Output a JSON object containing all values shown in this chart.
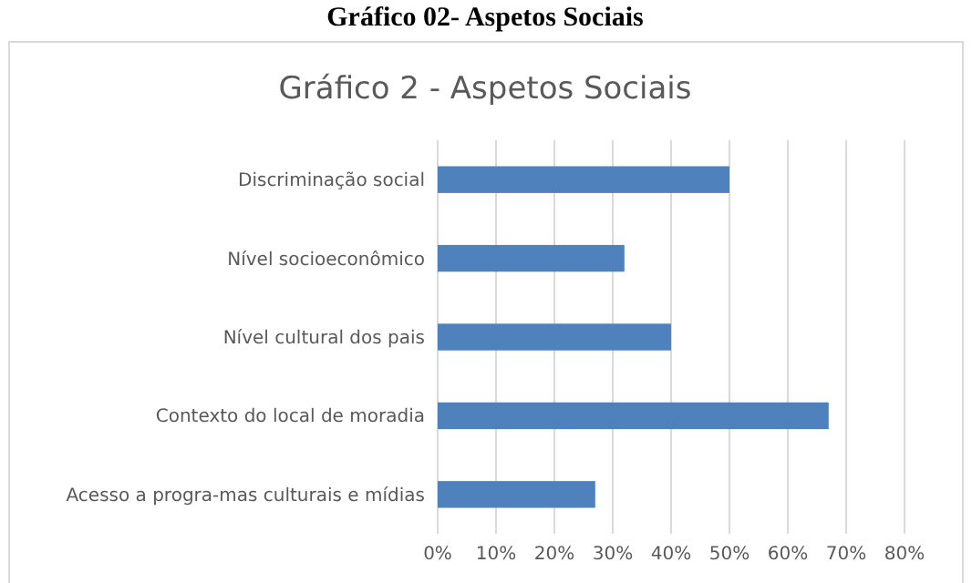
{
  "chart_data": {
    "type": "bar",
    "orientation": "horizontal",
    "title": "Gráfico 02- Aspetos Sociais",
    "subtitle": "Gráfico 2 - Aspetos Sociais",
    "categories": [
      "Discriminação social",
      "Nível socioeconômico",
      "Nível cultural dos pais",
      "Contexto do local de moradia",
      "Acesso a progra-mas culturais e mídias"
    ],
    "values": [
      50,
      32,
      40,
      67,
      27
    ],
    "color": "#4f81bd",
    "xlim": [
      0,
      80
    ],
    "xticks": [
      {
        "value": 0,
        "label": "0%"
      },
      {
        "value": 10,
        "label": "10%"
      },
      {
        "value": 20,
        "label": "20%"
      },
      {
        "value": 30,
        "label": "30%"
      },
      {
        "value": 40,
        "label": "40%"
      },
      {
        "value": 50,
        "label": "50%"
      },
      {
        "value": 60,
        "label": "60%"
      },
      {
        "value": 70,
        "label": "70%"
      },
      {
        "value": 80,
        "label": "80%"
      }
    ],
    "grid": "x"
  }
}
